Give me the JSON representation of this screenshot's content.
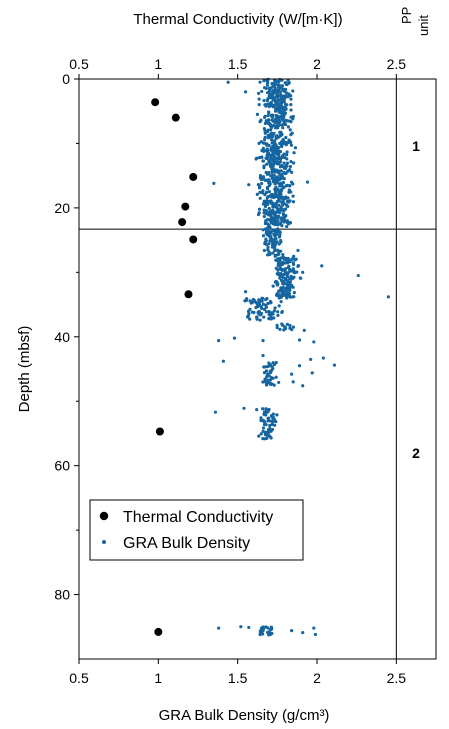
{
  "chart_data": {
    "type": "scatter",
    "top_axis": {
      "label": "Thermal Conductivity (W/[m·K])",
      "range": [
        0.5,
        2.75
      ],
      "ticks": [
        0.5,
        1,
        1.5,
        2,
        2.5
      ],
      "tick_labels": [
        "0.5",
        "1",
        "1.5",
        "2",
        "2.5"
      ]
    },
    "bottom_axis": {
      "label": "GRA Bulk Density (g/cm³)",
      "range": [
        0.5,
        2.75
      ],
      "ticks": [
        0.5,
        1,
        1.5,
        2,
        2.5
      ],
      "tick_labels": [
        "0.5",
        "1",
        "1.5",
        "2",
        "2.5"
      ]
    },
    "y_axis": {
      "label": "Depth (mbsf)",
      "range": [
        0,
        90
      ],
      "inverted": true,
      "ticks": [
        0,
        20,
        40,
        60,
        80
      ],
      "tick_labels": [
        "0",
        "20",
        "40",
        "60",
        "80"
      ]
    },
    "unit_column": {
      "header_lines": [
        "PP",
        "unit"
      ],
      "boundary_depth": 23.3,
      "boundary_x": 2.5,
      "units": [
        {
          "label": "1",
          "depth": 11
        },
        {
          "label": "2",
          "depth": 59
        }
      ]
    },
    "legend": {
      "position": "lower-left",
      "entries": [
        {
          "label": "Thermal Conductivity",
          "marker": "large-dot",
          "color": "#000000"
        },
        {
          "label": "GRA Bulk Density",
          "marker": "small-dot",
          "color": "#1565a0"
        }
      ]
    },
    "series": [
      {
        "name": "Thermal Conductivity",
        "color": "#000000",
        "points": [
          [
            0.98,
            3.6
          ],
          [
            1.11,
            6.0
          ],
          [
            1.22,
            15.2
          ],
          [
            1.17,
            19.8
          ],
          [
            1.15,
            22.2
          ],
          [
            1.22,
            24.9
          ],
          [
            1.19,
            33.4
          ],
          [
            1.01,
            54.7
          ],
          [
            1.0,
            85.8
          ]
        ]
      },
      {
        "name": "GRA Bulk Density",
        "color": "#1565a0",
        "bands": [
          {
            "d0": 0.0,
            "d1": 23.0,
            "cx": 1.74,
            "spread": 0.09,
            "n": 700
          },
          {
            "d0": 23.0,
            "d1": 27.5,
            "cx": 1.72,
            "spread": 0.06,
            "n": 90
          },
          {
            "d0": 27.5,
            "d1": 34.0,
            "cx": 1.8,
            "spread": 0.07,
            "n": 160
          },
          {
            "d0": 34.0,
            "d1": 37.5,
            "cx": 1.66,
            "spread": 0.1,
            "n": 80
          },
          {
            "d0": 38.0,
            "d1": 39.0,
            "cx": 1.8,
            "spread": 0.06,
            "n": 14
          },
          {
            "d0": 44.0,
            "d1": 47.5,
            "cx": 1.71,
            "spread": 0.05,
            "n": 40
          },
          {
            "d0": 51.0,
            "d1": 56.0,
            "cx": 1.69,
            "spread": 0.05,
            "n": 60
          },
          {
            "d0": 85.0,
            "d1": 86.3,
            "cx": 1.68,
            "spread": 0.06,
            "n": 24
          }
        ],
        "points": [
          [
            1.44,
            0.5
          ],
          [
            1.55,
            2.0
          ],
          [
            1.94,
            16.0
          ],
          [
            1.57,
            16.4
          ],
          [
            1.35,
            16.2
          ],
          [
            1.88,
            26.6
          ],
          [
            2.03,
            29.0
          ],
          [
            2.26,
            30.5
          ],
          [
            2.45,
            33.8
          ],
          [
            1.91,
            30.0
          ],
          [
            1.55,
            33.0
          ],
          [
            1.92,
            39.0
          ],
          [
            1.38,
            40.6
          ],
          [
            1.48,
            40.2
          ],
          [
            1.66,
            40.6
          ],
          [
            1.89,
            40.5
          ],
          [
            1.98,
            40.8
          ],
          [
            1.41,
            43.8
          ],
          [
            1.66,
            42.9
          ],
          [
            1.96,
            43.5
          ],
          [
            2.04,
            43.3
          ],
          [
            2.11,
            44.4
          ],
          [
            1.89,
            44.5
          ],
          [
            1.97,
            45.6
          ],
          [
            1.84,
            45.8
          ],
          [
            1.85,
            47.0
          ],
          [
            1.91,
            47.6
          ],
          [
            1.36,
            51.7
          ],
          [
            1.54,
            51.1
          ],
          [
            1.62,
            51.3
          ],
          [
            1.38,
            85.2
          ],
          [
            1.52,
            85.0
          ],
          [
            1.57,
            85.1
          ],
          [
            1.98,
            85.2
          ],
          [
            1.99,
            86.2
          ],
          [
            1.91,
            85.9
          ],
          [
            1.84,
            85.6
          ]
        ]
      }
    ]
  }
}
